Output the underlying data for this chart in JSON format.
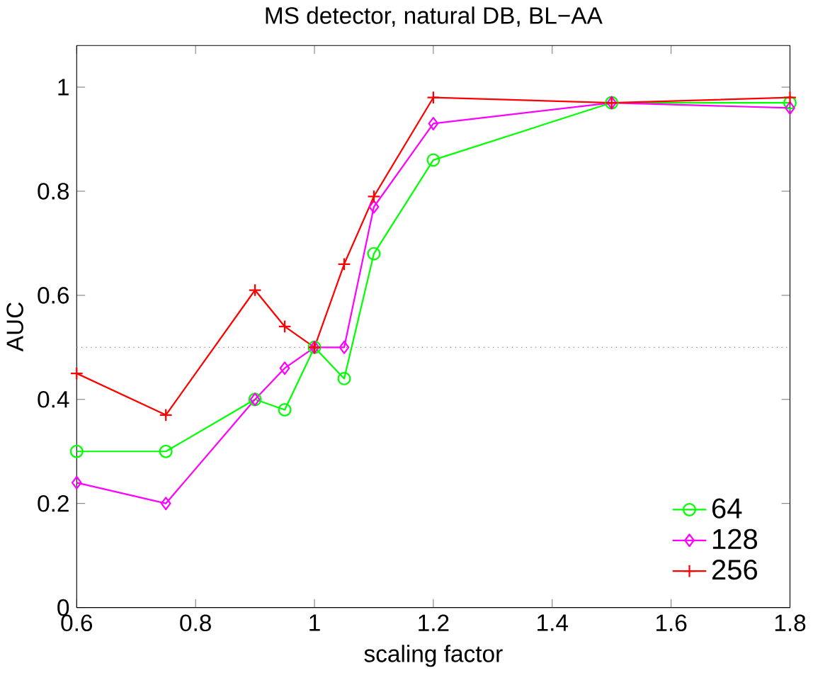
{
  "chart_data": {
    "type": "line",
    "title": "MS detector, natural DB, BL−AA",
    "xlabel": "scaling factor",
    "ylabel": "AUC",
    "x": [
      0.6,
      0.75,
      0.9,
      0.95,
      1.0,
      1.05,
      1.1,
      1.2,
      1.5,
      1.8
    ],
    "series": [
      {
        "name": "64",
        "color": "#00ff00",
        "marker": "circle",
        "values": [
          0.3,
          0.3,
          0.4,
          0.38,
          0.5,
          0.44,
          0.68,
          0.86,
          0.97,
          0.97
        ]
      },
      {
        "name": "128",
        "color": "#ff00ff",
        "marker": "diamond",
        "values": [
          0.24,
          0.2,
          0.4,
          0.46,
          0.5,
          0.5,
          0.77,
          0.93,
          0.97,
          0.96
        ]
      },
      {
        "name": "256",
        "color": "#ff0000",
        "marker": "cross",
        "values": [
          0.45,
          0.37,
          0.61,
          0.54,
          0.5,
          0.66,
          0.79,
          0.98,
          0.97,
          0.98
        ]
      }
    ],
    "xlim": [
      0.6,
      1.8
    ],
    "ylim": [
      0,
      1.08
    ],
    "xticks": [
      0.6,
      0.8,
      1,
      1.2,
      1.4,
      1.6,
      1.8
    ],
    "yticks": [
      0,
      0.2,
      0.4,
      0.6,
      0.8,
      1
    ],
    "ref_lines": [
      {
        "axis": "y",
        "value": 0.5,
        "color": "#808080",
        "line_style": "dotted"
      }
    ],
    "legend": "bottom right",
    "grid": false,
    "line_style": "solid"
  }
}
